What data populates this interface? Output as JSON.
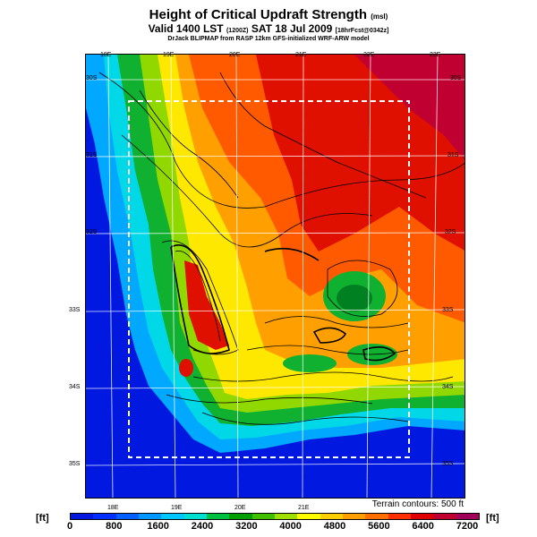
{
  "title": "Height of Critical Updraft Strength",
  "title_unit": "(msl)",
  "valid": "Valid 1400 LST",
  "valid_utc": "(1200Z)",
  "date": "SAT 18 Jul 2009",
  "forecast": "[18hrFcst@0342z]",
  "credit": "DrJack BLIPMAP from RASP 12km GFS-initialized WRF-ARW model",
  "terrain_contours": "Terrain contours: 500 ft",
  "colorbar": {
    "unit_left": "[ft]",
    "unit_right": "[ft]",
    "labels": [
      "0",
      "800",
      "1600",
      "2400",
      "3200",
      "4000",
      "4800",
      "5600",
      "6400",
      "7200"
    ],
    "colors": [
      "#0018e0",
      "#0030ff",
      "#0060ff",
      "#0098ff",
      "#00c8ff",
      "#00e0d0",
      "#00c040",
      "#00a000",
      "#40c000",
      "#a0e000",
      "#ffff00",
      "#ffd000",
      "#ffa000",
      "#ff7000",
      "#ff3000",
      "#e00000",
      "#c00030",
      "#a0005a"
    ]
  },
  "map": {
    "top_ticks": [
      "18E",
      "19E",
      "20E",
      "21E",
      "22E",
      "23E"
    ],
    "bottom_ticks": [
      "18E",
      "19E",
      "20E",
      "21E"
    ],
    "left_ticks": [
      "30S",
      "31S",
      "32S",
      "33S",
      "34S",
      "35S"
    ],
    "right_ticks": [
      "30S",
      "31S",
      "32S",
      "33S",
      "34S",
      "35S"
    ]
  }
}
